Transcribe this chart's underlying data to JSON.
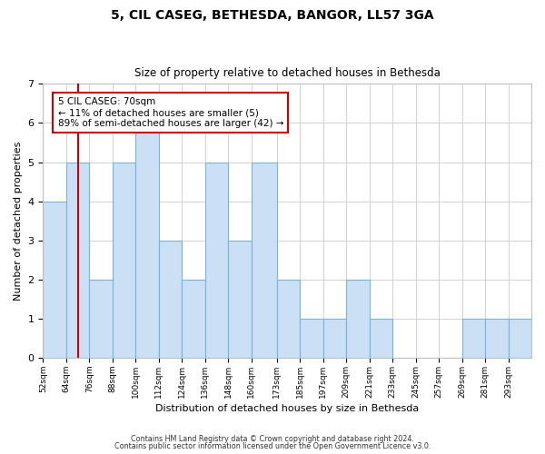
{
  "title": "5, CIL CASEG, BETHESDA, BANGOR, LL57 3GA",
  "subtitle": "Size of property relative to detached houses in Bethesda",
  "xlabel": "Distribution of detached houses by size in Bethesda",
  "ylabel": "Number of detached properties",
  "bin_labels": [
    "52sqm",
    "64sqm",
    "76sqm",
    "88sqm",
    "100sqm",
    "112sqm",
    "124sqm",
    "136sqm",
    "148sqm",
    "160sqm",
    "173sqm",
    "185sqm",
    "197sqm",
    "209sqm",
    "221sqm",
    "233sqm",
    "245sqm",
    "257sqm",
    "269sqm",
    "281sqm",
    "293sqm"
  ],
  "bar_heights": [
    4,
    5,
    2,
    5,
    6,
    3,
    2,
    5,
    3,
    5,
    2,
    1,
    1,
    2,
    1,
    0,
    0,
    0,
    1,
    1,
    1
  ],
  "bar_color": "#cce0f5",
  "bar_edge_color": "#7ab3d9",
  "ylim": [
    0,
    7
  ],
  "yticks": [
    0,
    1,
    2,
    3,
    4,
    5,
    6,
    7
  ],
  "annotation_box_text": "5 CIL CASEG: 70sqm\n← 11% of detached houses are smaller (5)\n89% of semi-detached houses are larger (42) →",
  "annotation_box_color": "#ffffff",
  "annotation_box_edge_color": "#cc0000",
  "vline_color": "#cc0000",
  "vline_x": 70,
  "footer_line1": "Contains HM Land Registry data © Crown copyright and database right 2024.",
  "footer_line2": "Contains public sector information licensed under the Open Government Licence v3.0.",
  "background_color": "#ffffff",
  "grid_color": "#cccccc"
}
